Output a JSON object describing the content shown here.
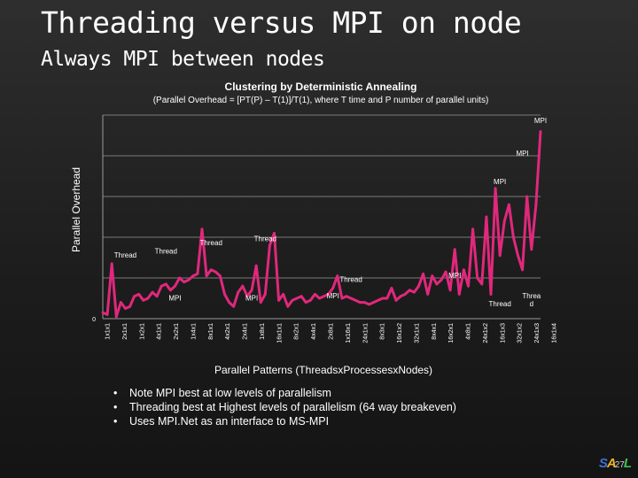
{
  "slide": {
    "title": "Threading versus MPI on node",
    "subtitle": "Always MPI between nodes",
    "bullets": [
      "Note MPI best at low levels of parallelism",
      "Threading best at Highest levels of parallelism (64 way breakeven)",
      "Uses MPI.Net as an interface to MS-MPI"
    ],
    "logo": {
      "part1": "S",
      "part2": "A",
      "page_number": "27",
      "part3": "L"
    }
  },
  "chart_data": {
    "type": "line",
    "title": "Clustering by Deterministic Annealing",
    "subtitle": "(Parallel Overhead = [PT(P) – T(1)]/T(1),  where T time and P number of parallel units)",
    "xlabel": "Parallel Patterns (ThreadsxProcessesxNodes)",
    "ylabel": "Parallel Overhead",
    "y_origin_label": "0",
    "line_color": "#e0287c",
    "grid": true,
    "x_tick_labels": [
      "1x1x1",
      "2x1x1",
      "1x2x1",
      "4x1x1",
      "2x2x1",
      "1x4x1",
      "8x1x1",
      "4x2x1",
      "2x4x1",
      "1x8x1",
      "16x1x1",
      "8x2x1",
      "4x4x1",
      "2x8x1",
      "1x16x1",
      "24x1x1",
      "8x3x1",
      "16x1x2",
      "32x1x1",
      "8x4x1",
      "16x2x1",
      "4x8x1",
      "24x1x2",
      "16x1x3",
      "32x1x2",
      "24x1x3",
      "16x1x4"
    ],
    "values": [
      0.03,
      0.02,
      0.27,
      0.01,
      0.08,
      0.05,
      0.06,
      0.11,
      0.12,
      0.09,
      0.1,
      0.13,
      0.11,
      0.16,
      0.17,
      0.14,
      0.16,
      0.2,
      0.18,
      0.19,
      0.21,
      0.22,
      0.44,
      0.21,
      0.24,
      0.23,
      0.21,
      0.12,
      0.08,
      0.06,
      0.13,
      0.16,
      0.11,
      0.14,
      0.26,
      0.08,
      0.12,
      0.36,
      0.42,
      0.09,
      0.12,
      0.06,
      0.09,
      0.1,
      0.11,
      0.08,
      0.09,
      0.12,
      0.1,
      0.11,
      0.12,
      0.15,
      0.21,
      0.1,
      0.11,
      0.1,
      0.09,
      0.08,
      0.08,
      0.07,
      0.08,
      0.09,
      0.1,
      0.1,
      0.15,
      0.09,
      0.11,
      0.12,
      0.14,
      0.13,
      0.16,
      0.22,
      0.12,
      0.21,
      0.17,
      0.19,
      0.23,
      0.14,
      0.34,
      0.12,
      0.24,
      0.16,
      0.44,
      0.2,
      0.17,
      0.5,
      0.12,
      0.64,
      0.31,
      0.48,
      0.56,
      0.4,
      0.31,
      0.24,
      0.6,
      0.34,
      0.56,
      0.92
    ],
    "annotations": [
      {
        "text": "MPI",
        "index": 97,
        "value": 0.96
      },
      {
        "text": "MPI",
        "index": 93,
        "value": 0.8
      },
      {
        "text": "MPI",
        "index": 88,
        "value": 0.66
      },
      {
        "text": "Thread",
        "index": 5,
        "value": 0.3
      },
      {
        "text": "Thread",
        "index": 14,
        "value": 0.32
      },
      {
        "text": "Thread",
        "index": 24,
        "value": 0.36
      },
      {
        "text": "Thread",
        "index": 36,
        "value": 0.38
      },
      {
        "text": "Thread",
        "index": 55,
        "value": 0.18
      },
      {
        "text": "MPI",
        "index": 78,
        "value": 0.2
      },
      {
        "text": "MPI",
        "index": 16,
        "value": 0.09
      },
      {
        "text": "MPI",
        "index": 33,
        "value": 0.09
      },
      {
        "text": "MPI",
        "index": 51,
        "value": 0.1
      },
      {
        "text": "Thread",
        "index": 88,
        "value": 0.06
      },
      {
        "text": "Threa",
        "index": 95,
        "value": 0.1
      },
      {
        "text": "d",
        "index": 95,
        "value": 0.06
      }
    ]
  }
}
